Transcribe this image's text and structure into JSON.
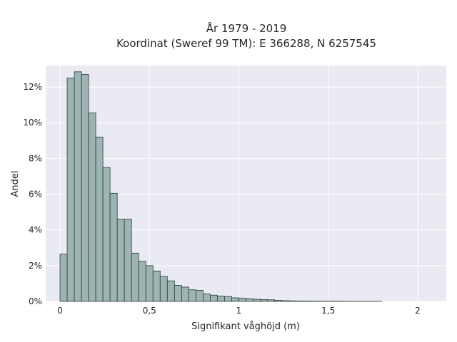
{
  "chart_data": {
    "type": "bar",
    "title": "År 1979 - 2019",
    "subtitle": "Koordinat (Sweref 99 TM): E 366288, N 6257545",
    "xlabel": "Signifikant våghöjd (m)",
    "ylabel": "Andel",
    "xlim": [
      -0.08,
      2.16
    ],
    "ylim": [
      0,
      13.2
    ],
    "x_ticks": [
      0,
      0.5,
      1,
      1.5,
      2
    ],
    "x_tick_labels": [
      "0",
      "0,5",
      "1",
      "1,5",
      "2"
    ],
    "y_ticks": [
      0,
      2,
      4,
      6,
      8,
      10,
      12
    ],
    "y_tick_labels": [
      "0%",
      "2%",
      "4%",
      "6%",
      "8%",
      "10%",
      "12%"
    ],
    "grid": true,
    "bin_width": 0.04,
    "bin_starts": [
      0.0,
      0.04,
      0.08,
      0.12,
      0.16,
      0.2,
      0.24,
      0.28,
      0.32,
      0.36,
      0.4,
      0.44,
      0.48,
      0.52,
      0.56,
      0.6,
      0.64,
      0.68,
      0.72,
      0.76,
      0.8,
      0.84,
      0.88,
      0.92,
      0.96,
      1.0,
      1.04,
      1.08,
      1.12,
      1.16,
      1.2,
      1.24,
      1.28,
      1.32,
      1.36,
      1.4,
      1.44,
      1.48,
      1.52,
      1.56,
      1.6,
      1.64,
      1.68,
      1.72,
      1.76
    ],
    "values": [
      2.65,
      12.5,
      12.85,
      12.7,
      10.55,
      9.2,
      7.5,
      6.05,
      4.6,
      4.6,
      2.7,
      2.25,
      2.0,
      1.7,
      1.4,
      1.15,
      0.9,
      0.8,
      0.65,
      0.62,
      0.42,
      0.35,
      0.3,
      0.27,
      0.2,
      0.18,
      0.15,
      0.12,
      0.1,
      0.09,
      0.06,
      0.04,
      0.03,
      0.02,
      0.02,
      0.015,
      0.01,
      0.01,
      0.01,
      0.008,
      0.006,
      0.005,
      0.004,
      0.003,
      0.002
    ],
    "colors": {
      "plot_background": "#eaeaf2",
      "bar_fill": "#9cb4b2",
      "bar_edge": "#2f3b3b",
      "grid": "#ffffff"
    }
  }
}
